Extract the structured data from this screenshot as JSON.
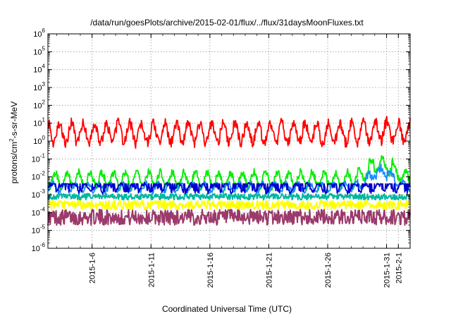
{
  "chart_data": {
    "type": "line",
    "title": "/data/run/goesPlots/archive/2015-02-01/flux/../flux/31daysMoonFluxes.txt",
    "xlabel": "Coordinated Universal Time (UTC)",
    "ylabel_prefix": "protons/cm",
    "ylabel_sup": "2",
    "ylabel_suffix": "-s-sr-MeV",
    "yscale": "log",
    "ylim": [
      1e-06,
      1000000.0
    ],
    "xlim": [
      "2015-01-02 06:00",
      "2015-02-02 00:00"
    ],
    "grid": true,
    "y_ticks": [
      {
        "base": "10",
        "exp": "-6"
      },
      {
        "base": "10",
        "exp": "-5"
      },
      {
        "base": "10",
        "exp": "-4"
      },
      {
        "base": "10",
        "exp": "-3"
      },
      {
        "base": "10",
        "exp": "-2"
      },
      {
        "base": "10",
        "exp": "-1"
      },
      {
        "base": "10",
        "exp": "0"
      },
      {
        "base": "10",
        "exp": "1"
      },
      {
        "base": "10",
        "exp": "2"
      },
      {
        "base": "10",
        "exp": "3"
      },
      {
        "base": "10",
        "exp": "4"
      },
      {
        "base": "10",
        "exp": "5"
      },
      {
        "base": "10",
        "exp": "6"
      }
    ],
    "x_ticks": [
      {
        "label": "2015-1-6",
        "date": "2015-01-06"
      },
      {
        "label": "2015-1-11",
        "date": "2015-01-11"
      },
      {
        "label": "2015-1-16",
        "date": "2015-01-16"
      },
      {
        "label": "2015-1-21",
        "date": "2015-01-21"
      },
      {
        "label": "2015-1-26",
        "date": "2015-01-26"
      },
      {
        "label": "2015-1-31",
        "date": "2015-01-31"
      },
      {
        "label": "2015-2-1",
        "date": "2015-02-01"
      }
    ],
    "series": [
      {
        "color": "#9b3a6b",
        "style": "band",
        "typical_range": [
          1e-05,
          0.0003
        ]
      },
      {
        "color": "#ffff00",
        "style": "band",
        "typical_range": [
          0.0001,
          0.0007
        ]
      },
      {
        "color": "#00b8a0",
        "style": "band",
        "typical_range": [
          0.0004,
          0.0015
        ]
      },
      {
        "color": "#00ee00",
        "style": "line",
        "typical_range": [
          0.001,
          0.03
        ],
        "late_peak": 0.5
      },
      {
        "color": "#1a8cff",
        "style": "line",
        "typical_range": [
          0.0008,
          0.006
        ],
        "late_peak": 0.08
      },
      {
        "color": "#0000cc",
        "style": "line",
        "typical_range": [
          0.0008,
          0.005
        ],
        "baseline": 0.004
      },
      {
        "color": "#ff0000",
        "style": "line",
        "typical_range": [
          0.2,
          20
        ],
        "late_peak": 30
      }
    ]
  }
}
